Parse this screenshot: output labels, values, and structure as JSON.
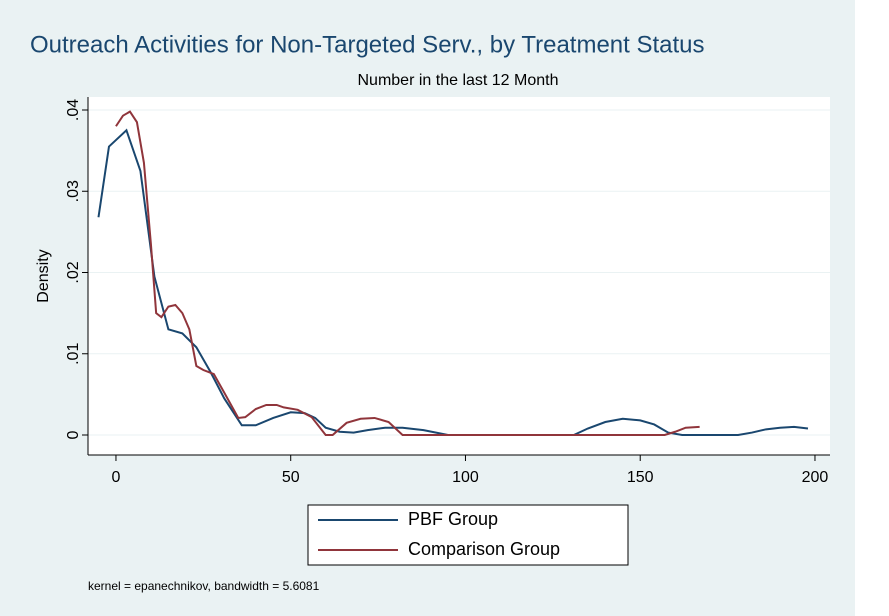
{
  "chart_data": {
    "type": "line",
    "title": "Outreach Activities for Non-Targeted Serv., by Treatment Status",
    "subtitle": "Number in the last 12 Month",
    "y_label": "Density",
    "note": "kernel = epanechnikov, bandwidth = 5.6081",
    "xlim": [
      -8,
      204.3
    ],
    "xticks": [
      0,
      50,
      100,
      150,
      200
    ],
    "ylim": [
      -0.00246,
      0.0416
    ],
    "yticks": [
      0,
      {
        "value": 0.01,
        "label": ".01"
      },
      {
        "value": 0.02,
        "label": ".02"
      },
      {
        "value": 0.03,
        "label": ".03"
      },
      {
        "value": 0.04,
        "label": ".04"
      }
    ],
    "grid": true,
    "series": [
      {
        "name": "PBF Group",
        "color": "#1a476f",
        "x": [
          -5,
          -2,
          3,
          7,
          11,
          15,
          19,
          23,
          27,
          31,
          36,
          40,
          45,
          50,
          54,
          57,
          60,
          64,
          68,
          72,
          77,
          82,
          88,
          95,
          110,
          131,
          135,
          140,
          145,
          150,
          154,
          158,
          162,
          178,
          182,
          186,
          190,
          194,
          198
        ],
        "values": [
          0.0268,
          0.0355,
          0.0375,
          0.0325,
          0.0195,
          0.013,
          0.0125,
          0.0108,
          0.0078,
          0.0045,
          0.0012,
          0.0012,
          0.0021,
          0.0028,
          0.0027,
          0.0021,
          0.0009,
          0.0004,
          0.0003,
          0.0006,
          0.0009,
          0.0009,
          0.0006,
          0,
          0,
          0,
          0.0008,
          0.0016,
          0.002,
          0.0018,
          0.0013,
          0.0003,
          0,
          0,
          0.0003,
          0.0007,
          0.0009,
          0.001,
          0.0008
        ]
      },
      {
        "name": "Comparison Group",
        "color": "#90353b",
        "x": [
          0,
          2,
          4,
          6,
          8,
          10,
          11.5,
          13,
          15,
          17,
          19,
          21,
          23,
          25,
          28,
          31,
          35,
          37,
          40,
          43,
          46,
          48,
          52,
          56,
          60,
          62,
          66,
          70,
          74,
          78,
          82,
          100,
          157,
          160,
          163,
          167
        ],
        "values": [
          0.038,
          0.0393,
          0.0398,
          0.0385,
          0.0335,
          0.0235,
          0.015,
          0.0145,
          0.0158,
          0.016,
          0.015,
          0.013,
          0.0085,
          0.008,
          0.0075,
          0.0052,
          0.0021,
          0.0022,
          0.0032,
          0.0037,
          0.0037,
          0.0034,
          0.0031,
          0.0022,
          0,
          0,
          0.0015,
          0.002,
          0.0021,
          0.0016,
          0,
          0,
          0,
          0.0004,
          0.0009,
          0.001
        ]
      }
    ]
  }
}
